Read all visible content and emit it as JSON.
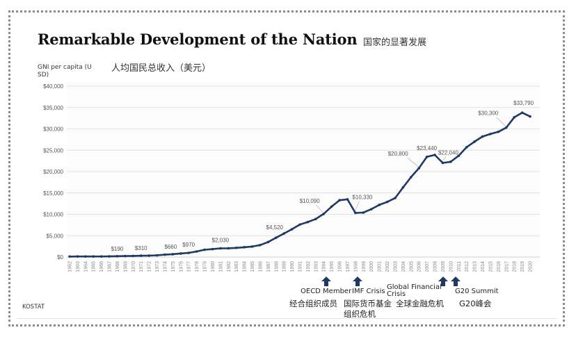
{
  "header": {
    "title": "Remarkable Development of the Nation",
    "title_cn": "国家的显著发展",
    "ylabel": "GNI per capita (U SD)",
    "ylabel_cn": "人均国民总收入（美元）"
  },
  "source": "KOSTAT",
  "colors": {
    "line": "#1f3864",
    "grid": "#e2e2e2",
    "axis_text": "#555555",
    "data_label": "#555555",
    "arrow": "#1f3864"
  },
  "annotations": [
    {
      "year": 1996,
      "label": "OECD Member",
      "label_cn": "经合组织成员"
    },
    {
      "year": 1998,
      "label": "IMF Crisis",
      "label_cn": "国际货币基金组织危机"
    },
    {
      "year": 2009,
      "label": "Global Financial Crisis",
      "label_cn": "全球金融危机"
    },
    {
      "year": 2011,
      "label": "G20 Summit",
      "label_cn": "G20峰会"
    }
  ],
  "chart_data": {
    "type": "line",
    "title": "Remarkable Development of the Nation",
    "xlabel": "",
    "ylabel": "GNI per capita (USD)",
    "ylim": [
      0,
      40000
    ],
    "yticks": [
      0,
      5000,
      10000,
      15000,
      20000,
      25000,
      30000,
      35000,
      40000
    ],
    "ytick_labels": [
      "$0",
      "$5,000",
      "$10,000",
      "$15,000",
      "$20,000",
      "$25,000",
      "$30,000",
      "$35,000",
      "$40,000"
    ],
    "grid": true,
    "legend": "none",
    "x": [
      1962,
      1963,
      1964,
      1965,
      1966,
      1967,
      1968,
      1969,
      1970,
      1971,
      1972,
      1973,
      1974,
      1975,
      1976,
      1977,
      1978,
      1979,
      1980,
      1981,
      1982,
      1983,
      1984,
      1985,
      1986,
      1987,
      1988,
      1989,
      1990,
      1991,
      1992,
      1993,
      1994,
      1995,
      1996,
      1997,
      1998,
      1999,
      2000,
      2001,
      2002,
      2003,
      2004,
      2005,
      2006,
      2007,
      2008,
      2009,
      2010,
      2011,
      2012,
      2013,
      2014,
      2015,
      2016,
      2017,
      2018,
      2019,
      2020
    ],
    "series": [
      {
        "name": "GNI per capita (USD)",
        "values": [
          120,
          130,
          130,
          130,
          130,
          150,
          190,
          230,
          260,
          310,
          330,
          400,
          560,
          660,
          830,
          970,
          1300,
          1700,
          1850,
          2030,
          2050,
          2150,
          2300,
          2450,
          2800,
          3500,
          4520,
          5500,
          6500,
          7600,
          8200,
          8900,
          10090,
          11800,
          13300,
          13500,
          10330,
          10400,
          11200,
          12200,
          12900,
          13800,
          16300,
          18700,
          20800,
          23440,
          23900,
          22040,
          22300,
          23700,
          25700,
          27000,
          28200,
          28800,
          29300,
          30300,
          32700,
          33790,
          32900
        ]
      }
    ],
    "data_labels": [
      {
        "year": 1968,
        "text": "$190"
      },
      {
        "year": 1971,
        "text": "$310"
      },
      {
        "year": 1975,
        "text": "$660"
      },
      {
        "year": 1977,
        "text": "$970"
      },
      {
        "year": 1981,
        "text": "$2,030"
      },
      {
        "year": 1988,
        "text": "$4,520"
      },
      {
        "year": 1994,
        "text": "$10,090"
      },
      {
        "year": 1998,
        "text": "$10,330"
      },
      {
        "year": 2006,
        "text": "$20,800"
      },
      {
        "year": 2007,
        "text": "$23,440"
      },
      {
        "year": 2009,
        "text": "$22,040"
      },
      {
        "year": 2017,
        "text": "$30,300"
      },
      {
        "year": 2019,
        "text": "$33,790"
      }
    ]
  }
}
